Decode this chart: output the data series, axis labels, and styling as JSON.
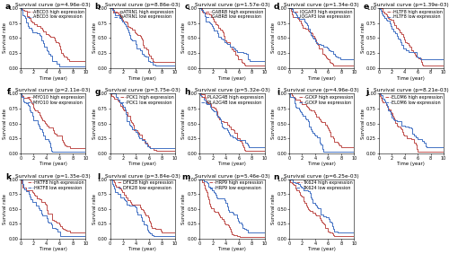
{
  "panels": [
    {
      "label": "a",
      "title": "Survival curve (p=4.96e-03)",
      "gene": "ABCD3",
      "high_color": "#c0504d",
      "low_color": "#4472c4",
      "high_above": true
    },
    {
      "label": "b",
      "title": "Survival curve (p=8.86e-03)",
      "gene": "pATRN1",
      "high_color": "#c0504d",
      "low_color": "#4472c4",
      "high_above": true
    },
    {
      "label": "c",
      "title": "Survival curve (p=1.57e-03)",
      "gene": "GABRB",
      "high_color": "#c0504d",
      "low_color": "#4472c4",
      "high_above": false
    },
    {
      "label": "d",
      "title": "Survival curve (p=1.34e-03)",
      "gene": "IQGAP3",
      "high_color": "#c0504d",
      "low_color": "#4472c4",
      "high_above": false
    },
    {
      "label": "e",
      "title": "Survival curve (p=1.39e-03)",
      "gene": "HLTF8",
      "high_color": "#c0504d",
      "low_color": "#4472c4",
      "high_above": false
    },
    {
      "label": "f",
      "title": "Survival curve (p=2.11e-03)",
      "gene": "MYO10",
      "high_color": "#c0504d",
      "low_color": "#4472c4",
      "high_above": true
    },
    {
      "label": "g",
      "title": "Survival curve (p=3.75e-03)",
      "gene": "PCK1",
      "high_color": "#c0504d",
      "low_color": "#4472c4",
      "high_above": false
    },
    {
      "label": "h",
      "title": "Survival curve (p=5.32e-03)",
      "gene": "PLA2G4B",
      "high_color": "#c0504d",
      "low_color": "#4472c4",
      "high_above": false
    },
    {
      "label": "i",
      "title": "Survival curve (p=4.96e-03)",
      "gene": "GCKP",
      "high_color": "#c0504d",
      "low_color": "#4472c4",
      "high_above": true
    },
    {
      "label": "j",
      "title": "Survival curve (p=8.21e-03)",
      "gene": "ELOM6",
      "high_color": "#c0504d",
      "low_color": "#4472c4",
      "high_above": false
    },
    {
      "label": "k",
      "title": "Survival curve (p=1.35e-03)",
      "gene": "HKTF8",
      "high_color": "#c0504d",
      "low_color": "#4472c4",
      "high_above": true
    },
    {
      "label": "l",
      "title": "Survival curve (p=3.84e-03)",
      "gene": "DFK28",
      "high_color": "#c0504d",
      "low_color": "#4472c4",
      "high_above": true
    },
    {
      "label": "m",
      "title": "Survival curve (p=5.46e-03)",
      "gene": "HRP9",
      "high_color": "#c0504d",
      "low_color": "#4472c4",
      "high_above": false
    },
    {
      "label": "n",
      "title": "Survival curve (p=6.25e-03)",
      "gene": "TK624",
      "high_color": "#c0504d",
      "low_color": "#4472c4",
      "high_above": false
    }
  ],
  "nrows": 3,
  "ncols": 5,
  "xlabel": "Time (year)",
  "ylabel": "Survival rate",
  "xlim": [
    0,
    10
  ],
  "ylim": [
    0,
    1.0
  ],
  "yticks": [
    0.0,
    0.25,
    0.5,
    0.75,
    1.0
  ],
  "xticks": [
    0,
    2,
    4,
    6,
    8,
    10
  ],
  "bg_color": "#ffffff",
  "line_width": 0.7,
  "legend_fontsize": 3.5,
  "title_fontsize": 4.2,
  "axis_fontsize": 3.8,
  "tick_fontsize": 3.5,
  "label_fontsize": 6.5
}
